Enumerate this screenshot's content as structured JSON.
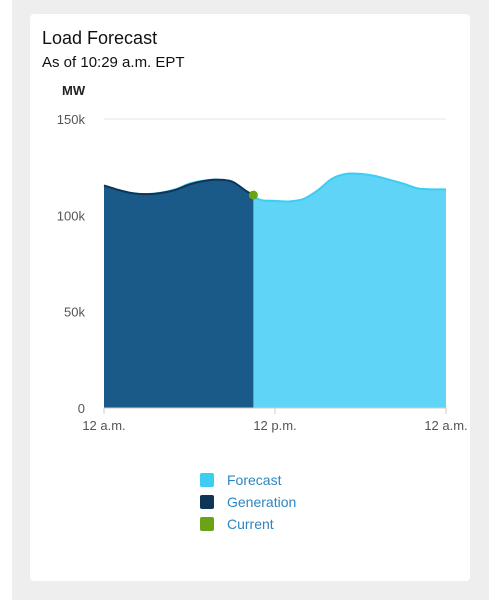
{
  "card": {
    "title": "Load Forecast",
    "subtitle": "As of 10:29 a.m. EPT"
  },
  "chart_data": {
    "type": "area",
    "ylabel": "MW",
    "ylim": [
      0,
      150000
    ],
    "yticks": [
      {
        "value": 0,
        "label": "0"
      },
      {
        "value": 50000,
        "label": "50k"
      },
      {
        "value": 100000,
        "label": "100k"
      },
      {
        "value": 150000,
        "label": "150k"
      }
    ],
    "xlim": [
      0,
      24
    ],
    "xticks": [
      {
        "value": 0,
        "label": "12 a.m."
      },
      {
        "value": 12,
        "label": "12 p.m."
      },
      {
        "value": 24,
        "label": "12 a.m."
      }
    ],
    "grid": true,
    "series": [
      {
        "name": "Forecast",
        "color": "#5fd4f7",
        "x": [
          0,
          1,
          2,
          3,
          4,
          5,
          6,
          7,
          8,
          9,
          10,
          11,
          12,
          13,
          14,
          15,
          16,
          17,
          18,
          19,
          20,
          21,
          22,
          23,
          24
        ],
        "values": [
          115000,
          113000,
          111500,
          111000,
          111800,
          113500,
          116500,
          118000,
          118500,
          116000,
          111500,
          108000,
          107500,
          107200,
          108500,
          113000,
          119000,
          121500,
          121500,
          120500,
          118500,
          116500,
          114000,
          113500,
          113500
        ]
      },
      {
        "name": "Generation",
        "color": "#1a5a88",
        "line_color": "#0d3557",
        "x": [
          0,
          1,
          2,
          3,
          4,
          5,
          6,
          7,
          8,
          9,
          10,
          10.48
        ],
        "values": [
          115500,
          113200,
          111500,
          111000,
          111600,
          113200,
          116000,
          117800,
          118500,
          117500,
          112500,
          110500
        ]
      },
      {
        "name": "Current",
        "color": "#6aa316",
        "x": [
          10.48
        ],
        "values": [
          110500
        ]
      }
    ],
    "legend": {
      "position": "bottom-center",
      "items": [
        {
          "label": "Forecast",
          "color": "#3ccdf2"
        },
        {
          "label": "Generation",
          "color": "#0d3557"
        },
        {
          "label": "Current",
          "color": "#6aa316"
        }
      ]
    }
  }
}
